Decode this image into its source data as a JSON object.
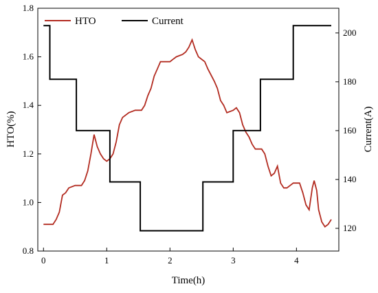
{
  "chart_data": {
    "type": "line",
    "x_label": "Time(h)",
    "y_label": "HTO(%)",
    "y2_label": "Current(A)",
    "xlim": [
      -0.09,
      4.67
    ],
    "xticks": [
      0,
      1,
      2,
      3,
      4
    ],
    "ylim": [
      0.8,
      1.8
    ],
    "yticks": [
      0.8,
      {
        "value": 1.0,
        "label": "1.0"
      },
      1.2,
      1.4,
      1.6,
      1.8
    ],
    "y2lim": [
      110.7,
      210.1
    ],
    "y2ticks": [
      120,
      140,
      160,
      180,
      200
    ],
    "legend": "top-left",
    "series": [
      {
        "name": "HTO",
        "color": "#b22a1f",
        "x": [
          0,
          0.15,
          0.2,
          0.25,
          0.3,
          0.35,
          0.4,
          0.5,
          0.6,
          0.65,
          0.7,
          0.75,
          0.8,
          0.85,
          0.9,
          0.95,
          1.0,
          1.05,
          1.1,
          1.15,
          1.2,
          1.25,
          1.35,
          1.45,
          1.55,
          1.6,
          1.65,
          1.7,
          1.75,
          1.8,
          1.85,
          2.0,
          2.05,
          2.1,
          2.2,
          2.25,
          2.3,
          2.35,
          2.4,
          2.45,
          2.5,
          2.55,
          2.6,
          2.7,
          2.75,
          2.8,
          2.85,
          2.9,
          3.0,
          3.05,
          3.1,
          3.15,
          3.2,
          3.25,
          3.3,
          3.35,
          3.45,
          3.5,
          3.55,
          3.6,
          3.65,
          3.7,
          3.75,
          3.8,
          3.85,
          3.9,
          3.95,
          4.05,
          4.1,
          4.15,
          4.2,
          4.25,
          4.28,
          4.32,
          4.35,
          4.4,
          4.45,
          4.5,
          4.55
        ],
        "values": [
          0.91,
          0.91,
          0.93,
          0.96,
          1.03,
          1.04,
          1.06,
          1.07,
          1.07,
          1.09,
          1.13,
          1.2,
          1.28,
          1.23,
          1.2,
          1.18,
          1.17,
          1.18,
          1.2,
          1.25,
          1.32,
          1.35,
          1.37,
          1.38,
          1.38,
          1.4,
          1.44,
          1.47,
          1.52,
          1.55,
          1.58,
          1.58,
          1.59,
          1.6,
          1.61,
          1.62,
          1.64,
          1.67,
          1.63,
          1.6,
          1.59,
          1.58,
          1.55,
          1.5,
          1.47,
          1.42,
          1.4,
          1.37,
          1.38,
          1.39,
          1.37,
          1.32,
          1.29,
          1.27,
          1.24,
          1.22,
          1.22,
          1.2,
          1.15,
          1.11,
          1.12,
          1.15,
          1.08,
          1.06,
          1.06,
          1.07,
          1.08,
          1.08,
          1.04,
          0.99,
          0.97,
          1.06,
          1.09,
          1.05,
          0.97,
          0.92,
          0.9,
          0.91,
          0.93
        ]
      },
      {
        "name": "Current",
        "color": "#000000",
        "axis": "y2",
        "x": [
          0,
          0.1,
          0.1,
          0.52,
          0.52,
          1.05,
          1.05,
          1.53,
          1.53,
          2.52,
          2.52,
          3.0,
          3.0,
          3.43,
          3.43,
          3.95,
          3.95,
          4.55
        ],
        "values": [
          203,
          203,
          181,
          181,
          160,
          160,
          139,
          139,
          119,
          119,
          139,
          139,
          160,
          160,
          181,
          181,
          203,
          203
        ]
      }
    ]
  }
}
